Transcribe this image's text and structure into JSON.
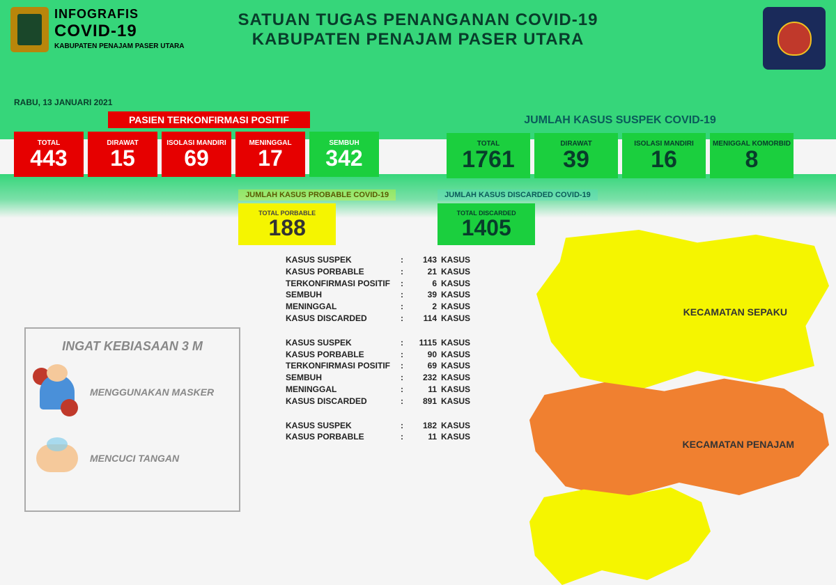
{
  "header": {
    "logo_title": "INFOGRAFIS",
    "logo_sub": "COVID-19",
    "logo_region": "KABUPATEN PENAJAM PASER UTARA",
    "main_line1": "SATUAN TUGAS PENANGANAN COVID-19",
    "main_line2": "KABUPATEN PENAJAM PASER UTARA",
    "date": "RABU, 13 JANUARI 2021"
  },
  "positif": {
    "title": "PASIEN TERKONFIRMASI POSITIF",
    "boxes": [
      {
        "label": "TOTAL",
        "value": "443",
        "style": "red"
      },
      {
        "label": "DIRAWAT",
        "value": "15",
        "style": "red"
      },
      {
        "label": "ISOLASI MANDIRI",
        "value": "69",
        "style": "red"
      },
      {
        "label": "MENINGGAL",
        "value": "17",
        "style": "red"
      },
      {
        "label": "SEMBUH",
        "value": "342",
        "style": "green"
      }
    ]
  },
  "suspek": {
    "title": "JUMLAH KASUS SUSPEK COVID-19",
    "boxes": [
      {
        "label": "TOTAL",
        "value": "1761",
        "style": "green-dark"
      },
      {
        "label": "DIRAWAT",
        "value": "39",
        "style": "green-dark"
      },
      {
        "label": "ISOLASI MANDIRI",
        "value": "16",
        "style": "green-dark"
      },
      {
        "label": "MENIGGAL KOMORBID",
        "value": "8",
        "style": "green-dark"
      }
    ]
  },
  "probable": {
    "title": "JUMLAH KASUS PROBABLE COVID-19",
    "label": "TOTAL PORBABLE",
    "value": "188"
  },
  "discarded": {
    "title": "JUMLAH KASUS DISCARDED COVID-19",
    "label": "TOTAL DISCARDED",
    "value": "1405"
  },
  "habits": {
    "title": "INGAT KEBIASAAN 3 M",
    "items": [
      {
        "text": "MENGGUNAKAN MASKER"
      },
      {
        "text": "MENCUCI TANGAN"
      }
    ]
  },
  "district_data": [
    [
      {
        "label": "KASUS SUSPEK",
        "value": "143",
        "unit": "KASUS"
      },
      {
        "label": "KASUS PORBABLE",
        "value": "21",
        "unit": "KASUS"
      },
      {
        "label": "TERKONFIRMASI POSITIF",
        "value": "6",
        "unit": "KASUS"
      },
      {
        "label": "SEMBUH",
        "value": "39",
        "unit": "KASUS"
      },
      {
        "label": "MENINGGAL",
        "value": "2",
        "unit": "KASUS"
      },
      {
        "label": "KASUS DISCARDED",
        "value": "114",
        "unit": "KASUS"
      }
    ],
    [
      {
        "label": "KASUS SUSPEK",
        "value": "1115",
        "unit": "KASUS"
      },
      {
        "label": "KASUS PORBABLE",
        "value": "90",
        "unit": "KASUS"
      },
      {
        "label": "TERKONFIRMASI POSITIF",
        "value": "69",
        "unit": "KASUS"
      },
      {
        "label": "SEMBUH",
        "value": "232",
        "unit": "KASUS"
      },
      {
        "label": "MENINGGAL",
        "value": "11",
        "unit": "KASUS"
      },
      {
        "label": "KASUS DISCARDED",
        "value": "891",
        "unit": "KASUS"
      }
    ],
    [
      {
        "label": "KASUS SUSPEK",
        "value": "182",
        "unit": "KASUS"
      },
      {
        "label": "KASUS PORBABLE",
        "value": "11",
        "unit": "KASUS"
      }
    ]
  ],
  "map": {
    "regions": [
      {
        "name": "KECAMATAN SEPAKU"
      },
      {
        "name": "KECAMATAN PENAJAM"
      }
    ]
  },
  "colors": {
    "header_bg": "#36d67a",
    "red": "#e60000",
    "green": "#1bcf3e",
    "yellow": "#f5f500",
    "orange": "#f08030",
    "teal_text": "#0a5a5a",
    "dark_green_text": "#083d2b"
  }
}
